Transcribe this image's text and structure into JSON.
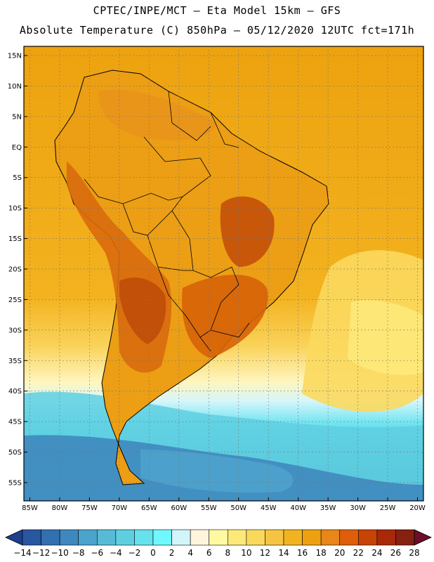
{
  "header": {
    "line1": "CPTEC/INPE/MCT –  Eta Model 15km – GFS",
    "line2": "Absolute Temperature (C) 850hPa – 05/12/2020 12UTC fct=171h"
  },
  "map": {
    "lat_labels": [
      "15N",
      "10N",
      "5N",
      "EQ",
      "5S",
      "10S",
      "15S",
      "20S",
      "25S",
      "30S",
      "35S",
      "40S",
      "45S",
      "50S",
      "55S"
    ],
    "lat_values": [
      15,
      10,
      5,
      0,
      -5,
      -10,
      -15,
      -20,
      -25,
      -30,
      -35,
      -40,
      -45,
      -50,
      -55
    ],
    "lon_labels": [
      "85W",
      "80W",
      "75W",
      "70W",
      "65W",
      "60W",
      "55W",
      "50W",
      "45W",
      "40W",
      "35W",
      "30W",
      "25W",
      "20W"
    ],
    "lon_values": [
      -85,
      -80,
      -75,
      -70,
      -65,
      -60,
      -55,
      -50,
      -45,
      -40,
      -35,
      -30,
      -25,
      -20
    ],
    "lat_range": [
      -58,
      16.5
    ],
    "lon_range": [
      -86,
      -19
    ]
  },
  "colorbar": {
    "labels": [
      "−14",
      "−12",
      "−10",
      "−8",
      "−6",
      "−4",
      "−2",
      "0",
      "2",
      "4",
      "6",
      "8",
      "10",
      "12",
      "14",
      "16",
      "18",
      "20",
      "22",
      "24",
      "26",
      "28"
    ],
    "colors": [
      "#1e3f8e",
      "#28569f",
      "#3370b0",
      "#3f88bf",
      "#4ca3cc",
      "#57bbd6",
      "#5fcfe0",
      "#67e1ee",
      "#6ff8ff",
      "#d2f5fb",
      "#fff5dc",
      "#fffaa2",
      "#fde97a",
      "#fad85c",
      "#f6c443",
      "#f2b320",
      "#eda110",
      "#e8861a",
      "#df5e0a",
      "#c84306",
      "#a8280a",
      "#862010",
      "#6b0f2a"
    ]
  }
}
